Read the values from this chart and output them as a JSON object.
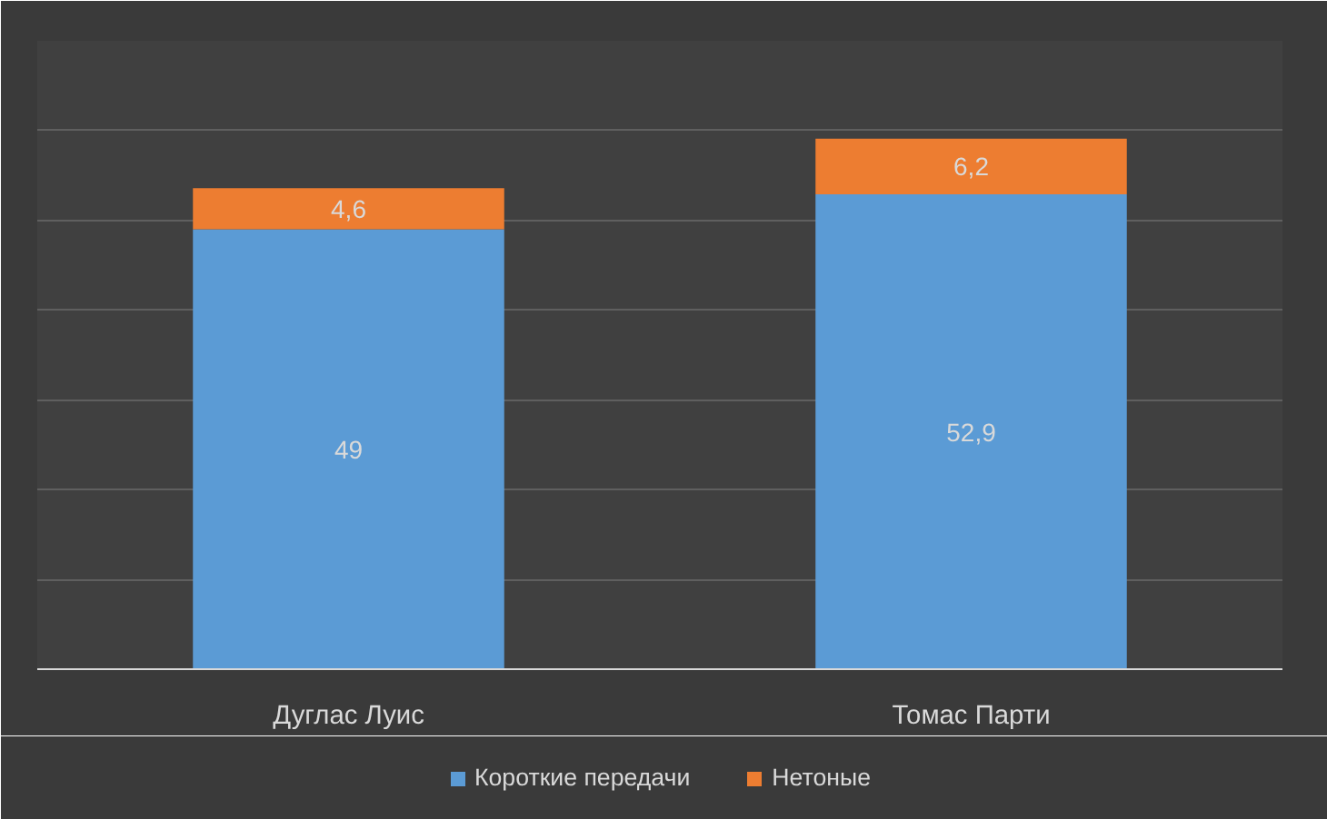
{
  "chart_data": {
    "type": "bar",
    "stacked": true,
    "categories": [
      "Дуглас Луис",
      "Томас Парти"
    ],
    "series": [
      {
        "name": "Короткие передачи",
        "color": "#5b9bd5",
        "values": [
          49,
          52.9
        ],
        "value_labels": [
          "49",
          "52,9"
        ]
      },
      {
        "name": "Нетоные",
        "color": "#ed7d31",
        "values": [
          4.6,
          6.2
        ],
        "value_labels": [
          "4,6",
          "6,2"
        ]
      }
    ],
    "ylim": [
      0,
      70
    ],
    "yticks": [
      {
        "value": 0,
        "label": null
      },
      {
        "value": 10,
        "label": null
      },
      {
        "value": 20,
        "label": null
      },
      {
        "value": 30,
        "label": null
      },
      {
        "value": 40,
        "label": null
      },
      {
        "value": 50,
        "label": null
      },
      {
        "value": 60,
        "label": null
      },
      {
        "value": 70,
        "label": null
      }
    ],
    "grid": "y",
    "legend": "bottom",
    "tick_labels": "x"
  }
}
